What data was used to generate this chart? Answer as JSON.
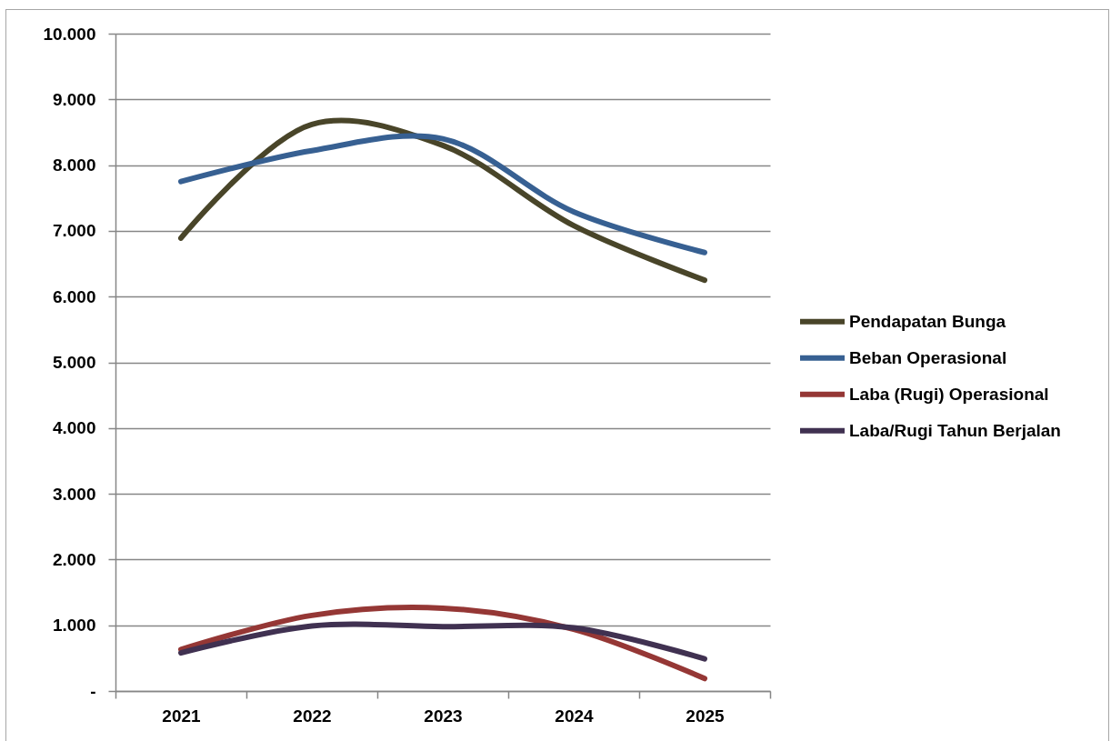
{
  "chart_data": {
    "type": "line",
    "categories": [
      "2021",
      "2022",
      "2023",
      "2024",
      "2025"
    ],
    "series": [
      {
        "name": "Pendapatan Bunga",
        "color": "#494529",
        "values": [
          6890,
          8620,
          8300,
          7080,
          6250
        ]
      },
      {
        "name": "Beban Operasional",
        "color": "#376092",
        "values": [
          7750,
          8220,
          8400,
          7290,
          6670
        ]
      },
      {
        "name": "Laba (Rugi) Operasional",
        "color": "#953735",
        "values": [
          630,
          1150,
          1260,
          940,
          190
        ]
      },
      {
        "name": "Laba/Rugi Tahun Berjalan",
        "color": "#403151",
        "values": [
          580,
          990,
          980,
          960,
          490
        ]
      }
    ],
    "ylim": [
      0,
      10000
    ],
    "yticks": [
      {
        "value": 0,
        "label": "-"
      },
      {
        "value": 1000,
        "label": "1.000"
      },
      {
        "value": 2000,
        "label": "2.000"
      },
      {
        "value": 3000,
        "label": "3.000"
      },
      {
        "value": 4000,
        "label": "4.000"
      },
      {
        "value": 5000,
        "label": "5.000"
      },
      {
        "value": 6000,
        "label": "6.000"
      },
      {
        "value": 7000,
        "label": "7.000"
      },
      {
        "value": 8000,
        "label": "8.000"
      },
      {
        "value": 9000,
        "label": "9.000"
      },
      {
        "value": 10000,
        "label": "10.000"
      }
    ],
    "grid": "y",
    "legend": "right"
  }
}
